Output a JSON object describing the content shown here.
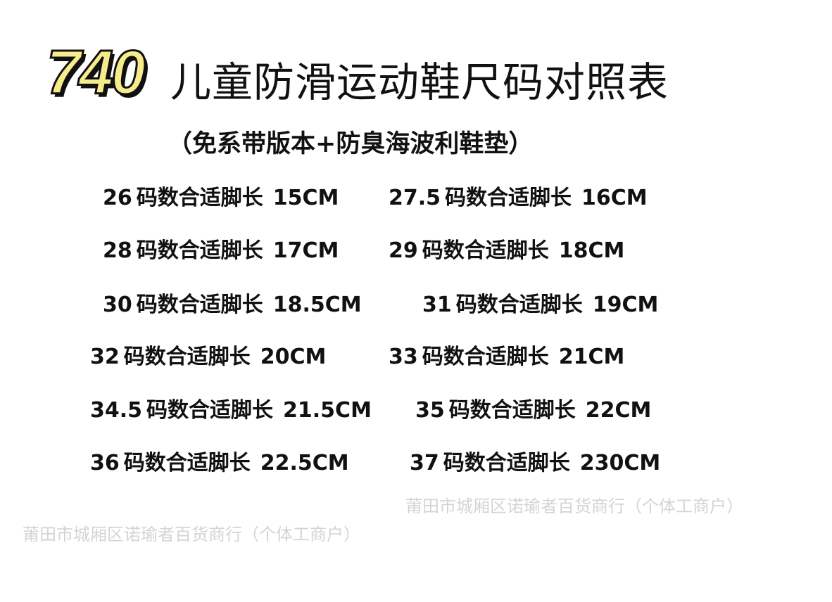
{
  "title": {
    "model": "740",
    "text": "儿童防滑运动鞋尺码对照表"
  },
  "subtitle": "（免系带版本+防臭海波利鞋垫）",
  "label": "码数合适脚长",
  "entries": [
    {
      "size": "26",
      "length": "15CM"
    },
    {
      "size": "27.5",
      "length": "16CM"
    },
    {
      "size": "28",
      "length": "17CM"
    },
    {
      "size": "29",
      "length": "18CM"
    },
    {
      "size": "30",
      "length": "18.5CM"
    },
    {
      "size": "31",
      "length": "19CM"
    },
    {
      "size": "32",
      "length": "20CM"
    },
    {
      "size": "33",
      "length": "21CM"
    },
    {
      "size": "34.5",
      "length": "21.5CM"
    },
    {
      "size": "35",
      "length": "22CM"
    },
    {
      "size": "36",
      "length": "22.5CM"
    },
    {
      "size": "37",
      "length": "230CM"
    }
  ],
  "watermark": "莆田市城厢区诺瑜者百货商行（个体工商户）"
}
